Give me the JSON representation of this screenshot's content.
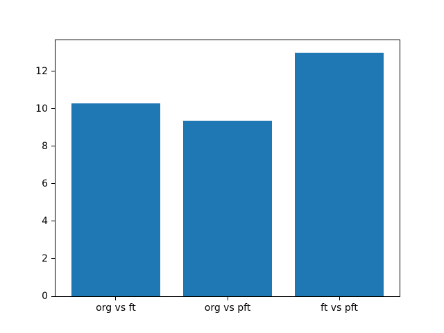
{
  "chart_data": {
    "type": "bar",
    "categories": [
      "org vs ft",
      "org vs pft",
      "ft vs pft"
    ],
    "values": [
      10.3,
      9.35,
      13.0
    ],
    "title": "",
    "xlabel": "",
    "ylabel": "",
    "yticks": [
      0,
      2,
      4,
      6,
      8,
      10,
      12
    ],
    "ylim": [
      0,
      13.65
    ],
    "xlim": [
      -0.54,
      2.54
    ],
    "bar_width": 0.8,
    "bar_color": "#1f77b4",
    "spine_color": "#000000",
    "tick_label_color": "#000000",
    "background_color": "#ffffff",
    "grid": false,
    "legend": null
  }
}
